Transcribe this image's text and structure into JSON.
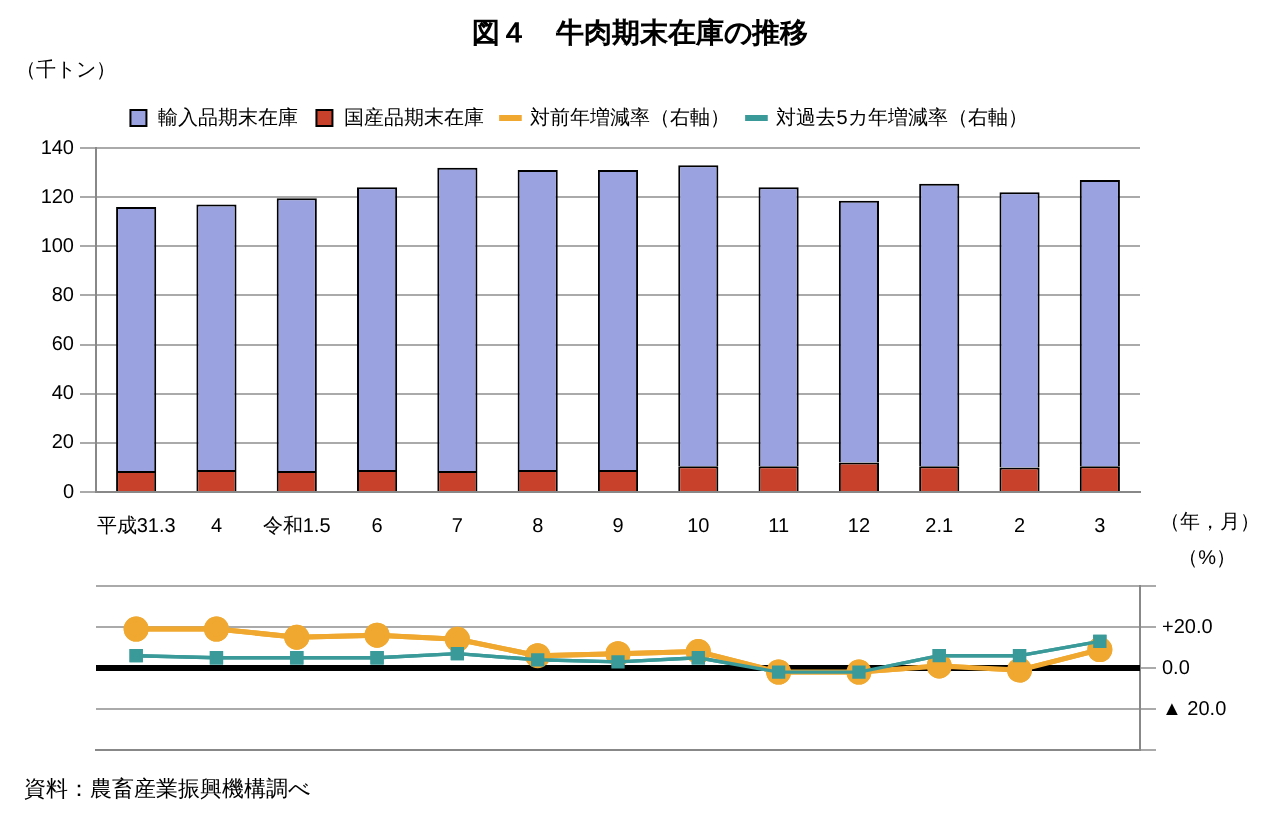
{
  "chart_data": [
    {
      "type": "bar",
      "title": "図４　牛肉期末在庫の推移",
      "ylabel": "（千トン）",
      "xlabel": "（年，月）",
      "stacked": true,
      "legend": "top",
      "grid": "y",
      "categories": [
        "平成31.3",
        "4",
        "令和1.5",
        "6",
        "7",
        "8",
        "9",
        "10",
        "11",
        "12",
        "2.1",
        "2",
        "3"
      ],
      "ylim": [
        0,
        140
      ],
      "yticks": [
        0,
        20,
        40,
        60,
        80,
        100,
        120,
        140
      ],
      "series": [
        {
          "name": "国産品期末在庫",
          "color": "#c8412a",
          "values": [
            8.5,
            9,
            8.5,
            9,
            8.5,
            9,
            9,
            10.5,
            10.5,
            12,
            10.5,
            10,
            10.5
          ]
        },
        {
          "name": "輸入品期末在庫",
          "color": "#9aa2e0",
          "values": [
            107.5,
            108,
            111,
            115,
            123.5,
            122,
            122,
            122.5,
            113.5,
            106.5,
            115,
            112,
            116.5
          ]
        }
      ]
    },
    {
      "type": "line",
      "ylabel": "（%）",
      "tick_labels": "y",
      "grid": "y",
      "categories": [
        null,
        null,
        null,
        null,
        null,
        null,
        null,
        null,
        null,
        null,
        null,
        null,
        null
      ],
      "ylim": [
        -40,
        40
      ],
      "yticks": [
        {
          "value": -40,
          "label": null
        },
        {
          "value": -20,
          "label": "▲ 20.0"
        },
        {
          "value": 0,
          "label": "0.0"
        },
        {
          "value": 20,
          "label": "+20.0"
        },
        {
          "value": 40,
          "label": null
        }
      ],
      "ref_lines": [
        {
          "axis": "y",
          "value": 0,
          "color": "#000000"
        }
      ],
      "annotations": [
        "資料：農畜産業振興機構調べ"
      ],
      "series": [
        {
          "name": "対前年増減率（右軸）",
          "color": "#f0a830",
          "marker": "circle",
          "values": [
            19,
            19,
            15,
            16,
            14,
            6,
            7,
            8,
            -2,
            -2,
            1,
            -1,
            9
          ]
        },
        {
          "name": "対過去5カ年増減率（右軸）",
          "color": "#3a9a9a",
          "marker": "square",
          "values": [
            6,
            5,
            5,
            5,
            7,
            4,
            3,
            5,
            -2,
            -2,
            6,
            6,
            13
          ]
        }
      ]
    }
  ]
}
